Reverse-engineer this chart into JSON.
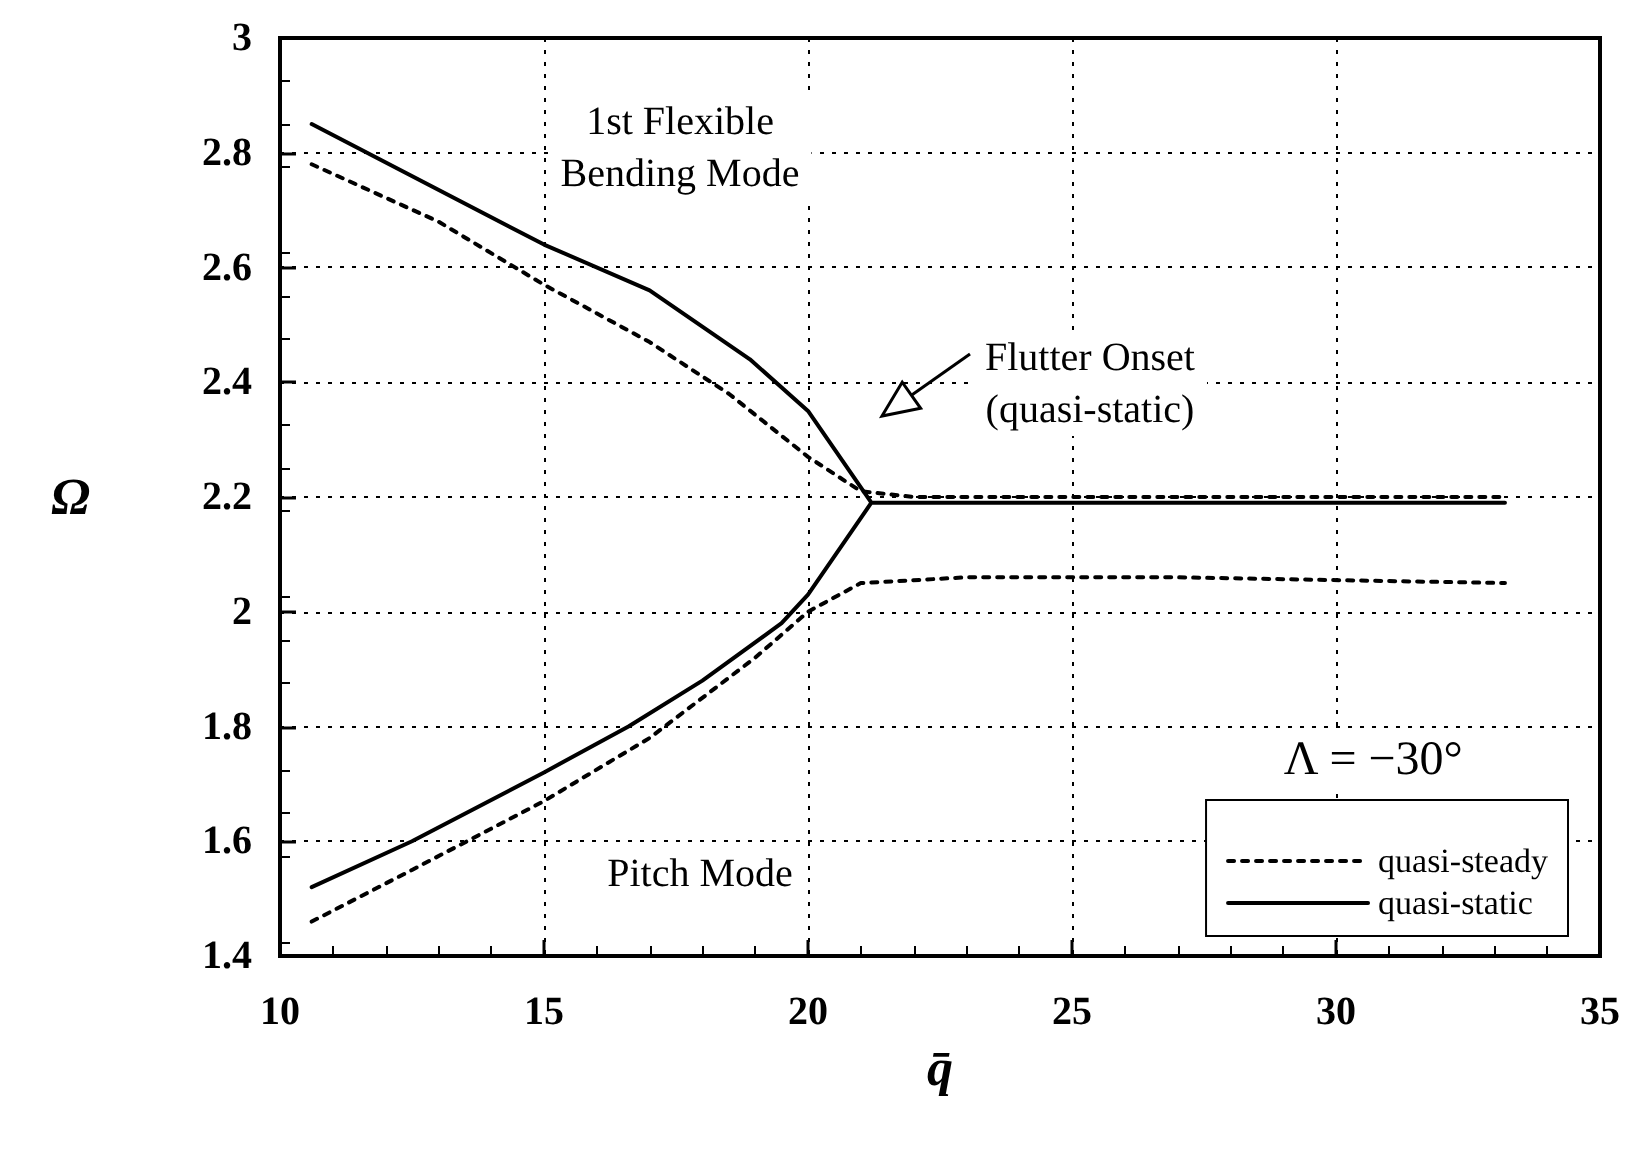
{
  "chart_data": {
    "type": "line",
    "xlabel": "q̄",
    "ylabel": "Ω",
    "legend_title": "Λ = −30°",
    "legend": "bottom right",
    "grid": true,
    "xlim": [
      10,
      35
    ],
    "xticks": [
      10,
      15,
      20,
      25,
      30,
      35
    ],
    "ylim": [
      1.4,
      3
    ],
    "yticks": [
      1.4,
      1.6,
      1.8,
      2,
      2.2,
      2.4,
      2.6,
      2.8,
      3
    ],
    "series": [
      {
        "name": "quasi-steady",
        "color": "#000000",
        "line_style": "dotted",
        "x": [
          10.6,
          13,
          15,
          17,
          18.5,
          20,
          21,
          22,
          27,
          33.2,
          null,
          10.6,
          12.5,
          15,
          17,
          19,
          20,
          21,
          23,
          27,
          33.2
        ],
        "values": [
          2.78,
          2.68,
          2.57,
          2.47,
          2.38,
          2.27,
          2.21,
          2.2,
          2.2,
          2.2,
          null,
          1.46,
          1.55,
          1.67,
          1.78,
          1.92,
          2.0,
          2.05,
          2.06,
          2.06,
          2.05
        ]
      },
      {
        "name": "quasi-static",
        "color": "#000000",
        "line_style": "solid",
        "x": [
          10.6,
          15,
          17,
          18.9,
          20,
          21.2,
          27,
          33.2,
          null,
          10.6,
          12.5,
          15,
          16.6,
          18,
          19.5,
          20,
          21.2
        ],
        "values": [
          2.85,
          2.64,
          2.56,
          2.44,
          2.35,
          2.19,
          2.19,
          2.19,
          null,
          1.52,
          1.6,
          1.72,
          1.8,
          1.88,
          1.98,
          2.03,
          2.19
        ]
      }
    ],
    "annotations": [
      "1st Flexible\nBending Mode",
      "Pitch Mode",
      "Flutter Onset\n(quasi-static)"
    ]
  }
}
